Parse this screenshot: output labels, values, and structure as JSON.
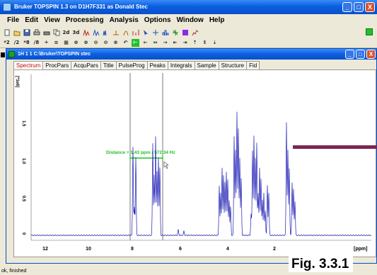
{
  "window": {
    "title": "Bruker TOPSPIN 1.3 on D1H7F331 as Donald Stec",
    "buttons": [
      "_",
      "□",
      "X"
    ]
  },
  "menu": [
    "File",
    "Edit",
    "View",
    "Processing",
    "Analysis",
    "Options",
    "Window",
    "Help"
  ],
  "toolbar1_icons": [
    "new-icon",
    "open-icon",
    "save-icon",
    "print-icon",
    "print2-icon",
    "copy-icon",
    "2d-icon",
    "3d-icon",
    "peak-pick-icon",
    "integrate-icon",
    "multiplet-icon",
    "baseline-icon",
    "phase-icon",
    "ruler-icon",
    "cursor-icon",
    "zoom-region-icon",
    "analysis-icon",
    "distance-icon",
    "color-icon",
    "grid-icon"
  ],
  "toolbar1_labels": {
    "two_d": "2d",
    "three_d": "3d"
  },
  "toolbar2_labels": [
    "*2",
    "/2",
    "*8",
    "/8",
    "÷",
    "≡",
    "▦",
    "⊕",
    "⊕",
    "⊖",
    "⊖",
    "⊕",
    "↶",
    "⊢",
    "←",
    "↔",
    "→",
    "⇤",
    "⇥",
    "⇡",
    "⇕",
    "⇣"
  ],
  "child_window": {
    "title": "1H  1  1  C:\\Bruker\\TOPSPIN  stec"
  },
  "tabs": [
    "Spectrum",
    "ProcPars",
    "AcquPars",
    "Title",
    "PulseProg",
    "Peaks",
    "Integrals",
    "Sample",
    "Structure",
    "Fid"
  ],
  "active_tab": "Spectrum",
  "y_axis_unit": "[*1e6]",
  "x_axis_unit": "[ppm]",
  "x_ticks": [
    "12",
    "10",
    "8",
    "6",
    "4",
    "2"
  ],
  "y_ticks": [
    "2",
    "1.5",
    "1.0",
    "0.5",
    "0"
  ],
  "distance_label": "Distance = 1.43 ppm / 572.34 Hz",
  "status_text": "ok, finished",
  "figure_label": "Fig. 3.3.1",
  "colors": {
    "spectrum": "#1b1bb4",
    "measure": "#22c02a",
    "title_bar": "#0b5fe0",
    "arrow": "#7a2750",
    "active_tab_text": "#c00000"
  }
}
